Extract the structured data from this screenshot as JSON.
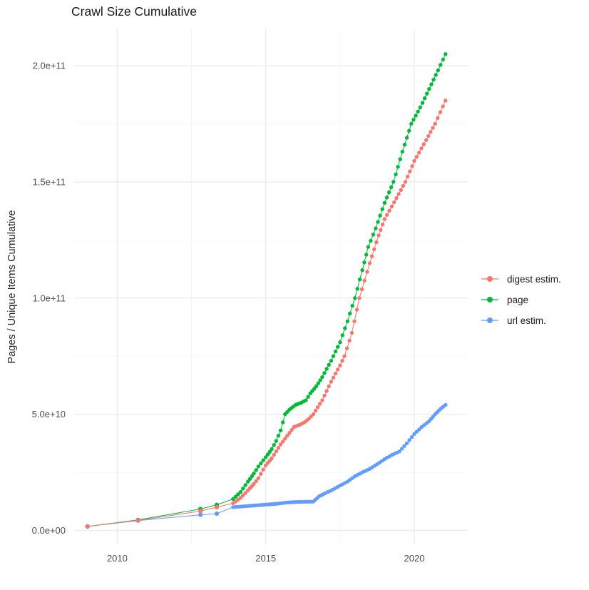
{
  "chart_data": {
    "type": "scatter",
    "title": "Crawl Size Cumulative",
    "xlabel": "",
    "ylabel": "Pages / Unique Items Cumulative",
    "grid": true,
    "legend_position": "right",
    "xlim": [
      2008.55,
      2021.8
    ],
    "ylim": [
      -6000000000.0,
      216000000000.0
    ],
    "x_ticks": {
      "values": [
        2010,
        2015,
        2020
      ],
      "labels": [
        "2010",
        "2015",
        "2020"
      ],
      "minor": [
        2012.5,
        2017.5
      ]
    },
    "y_ticks": {
      "values": [
        0,
        50000000000.0,
        100000000000.0,
        150000000000.0,
        200000000000.0
      ],
      "labels": [
        "0.0e+00",
        "5.0e+10",
        "1.0e+11",
        "1.5e+11",
        "2.0e+11"
      ],
      "minor": [
        25000000000.0,
        75000000000.0,
        125000000000.0,
        175000000000.0
      ]
    },
    "point_interpolation": {
      "from_year": 2013.9,
      "step": 0.09
    },
    "series": [
      {
        "name": "digest estim.",
        "color": "#F8766D",
        "points": [
          [
            2009.0,
            1700000000.0
          ],
          [
            2010.7,
            4300000000.0
          ],
          [
            2012.8,
            8300000000.0
          ],
          [
            2013.35,
            10000000000.0
          ],
          [
            2013.9,
            11700000000.0
          ],
          [
            2014.15,
            14000000000.0
          ],
          [
            2014.4,
            17200000000.0
          ],
          [
            2014.6,
            20000000000.0
          ],
          [
            2014.75,
            22500000000.0
          ],
          [
            2015.0,
            28000000000.0
          ],
          [
            2015.2,
            31000000000.0
          ],
          [
            2015.35,
            34000000000.0
          ],
          [
            2015.5,
            37000000000.0
          ],
          [
            2015.65,
            39500000000.0
          ],
          [
            2015.8,
            42000000000.0
          ],
          [
            2015.95,
            44500000000.0
          ],
          [
            2016.15,
            45500000000.0
          ],
          [
            2016.3,
            46500000000.0
          ],
          [
            2016.45,
            48000000000.0
          ],
          [
            2016.6,
            50000000000.0
          ],
          [
            2016.75,
            53000000000.0
          ],
          [
            2016.9,
            56000000000.0
          ],
          [
            2017.05,
            60000000000.0
          ],
          [
            2017.2,
            64000000000.0
          ],
          [
            2017.35,
            67500000000.0
          ],
          [
            2017.5,
            71000000000.0
          ],
          [
            2017.65,
            75000000000.0
          ],
          [
            2017.9,
            85000000000.0
          ],
          [
            2018.15,
            100000000000.0
          ],
          [
            2018.5,
            115000000000.0
          ],
          [
            2018.8,
            127000000000.0
          ],
          [
            2019.0,
            134000000000.0
          ],
          [
            2019.4,
            143000000000.0
          ],
          [
            2019.7,
            150000000000.0
          ],
          [
            2020.0,
            159000000000.0
          ],
          [
            2020.4,
            168000000000.0
          ],
          [
            2020.7,
            175000000000.0
          ],
          [
            2021.05,
            185000000000.0
          ]
        ]
      },
      {
        "name": "page",
        "color": "#00BA38",
        "points": [
          [
            2009.0,
            1700000000.0
          ],
          [
            2010.7,
            4500000000.0
          ],
          [
            2012.8,
            9200000000.0
          ],
          [
            2013.35,
            11000000000.0
          ],
          [
            2013.9,
            13500000000.0
          ],
          [
            2014.15,
            16500000000.0
          ],
          [
            2014.4,
            21000000000.0
          ],
          [
            2014.6,
            24500000000.0
          ],
          [
            2014.75,
            27500000000.0
          ],
          [
            2015.0,
            31500000000.0
          ],
          [
            2015.2,
            35000000000.0
          ],
          [
            2015.35,
            38500000000.0
          ],
          [
            2015.5,
            43000000000.0
          ],
          [
            2015.65,
            50000000000.0
          ],
          [
            2015.8,
            52000000000.0
          ],
          [
            2016.0,
            54000000000.0
          ],
          [
            2016.2,
            55000000000.0
          ],
          [
            2016.35,
            56000000000.0
          ],
          [
            2016.5,
            59000000000.0
          ],
          [
            2016.7,
            62000000000.0
          ],
          [
            2016.9,
            66000000000.0
          ],
          [
            2017.05,
            69500000000.0
          ],
          [
            2017.2,
            73000000000.0
          ],
          [
            2017.35,
            77000000000.0
          ],
          [
            2017.5,
            81000000000.0
          ],
          [
            2017.75,
            90000000000.0
          ],
          [
            2018.0,
            100000000000.0
          ],
          [
            2018.25,
            112000000000.0
          ],
          [
            2018.45,
            122000000000.0
          ],
          [
            2018.7,
            130000000000.0
          ],
          [
            2019.0,
            141000000000.0
          ],
          [
            2019.3,
            150000000000.0
          ],
          [
            2019.6,
            163000000000.0
          ],
          [
            2019.9,
            175000000000.0
          ],
          [
            2020.2,
            182000000000.0
          ],
          [
            2020.5,
            190000000000.0
          ],
          [
            2020.8,
            198000000000.0
          ],
          [
            2021.05,
            205000000000.0
          ]
        ]
      },
      {
        "name": "url estim.",
        "color": "#619CFF",
        "points": [
          [
            2009.0,
            1700000000.0
          ],
          [
            2010.7,
            4200000000.0
          ],
          [
            2012.8,
            6700000000.0
          ],
          [
            2013.35,
            7200000000.0
          ],
          [
            2013.9,
            10000000000.0
          ],
          [
            2014.2,
            10300000000.0
          ],
          [
            2014.5,
            10600000000.0
          ],
          [
            2014.8,
            10900000000.0
          ],
          [
            2015.1,
            11200000000.0
          ],
          [
            2015.4,
            11500000000.0
          ],
          [
            2015.7,
            12000000000.0
          ],
          [
            2016.0,
            12200000000.0
          ],
          [
            2016.3,
            12300000000.0
          ],
          [
            2016.6,
            12400000000.0
          ],
          [
            2016.8,
            14700000000.0
          ],
          [
            2017.0,
            16000000000.0
          ],
          [
            2017.25,
            17500000000.0
          ],
          [
            2017.5,
            19300000000.0
          ],
          [
            2017.75,
            21000000000.0
          ],
          [
            2018.0,
            23300000000.0
          ],
          [
            2018.25,
            25000000000.0
          ],
          [
            2018.5,
            26500000000.0
          ],
          [
            2018.75,
            28500000000.0
          ],
          [
            2019.0,
            30700000000.0
          ],
          [
            2019.25,
            32500000000.0
          ],
          [
            2019.5,
            34000000000.0
          ],
          [
            2019.75,
            37500000000.0
          ],
          [
            2020.0,
            41500000000.0
          ],
          [
            2020.25,
            44500000000.0
          ],
          [
            2020.5,
            47000000000.0
          ],
          [
            2020.7,
            50000000000.0
          ],
          [
            2020.9,
            52500000000.0
          ],
          [
            2021.05,
            54000000000.0
          ]
        ]
      }
    ]
  }
}
